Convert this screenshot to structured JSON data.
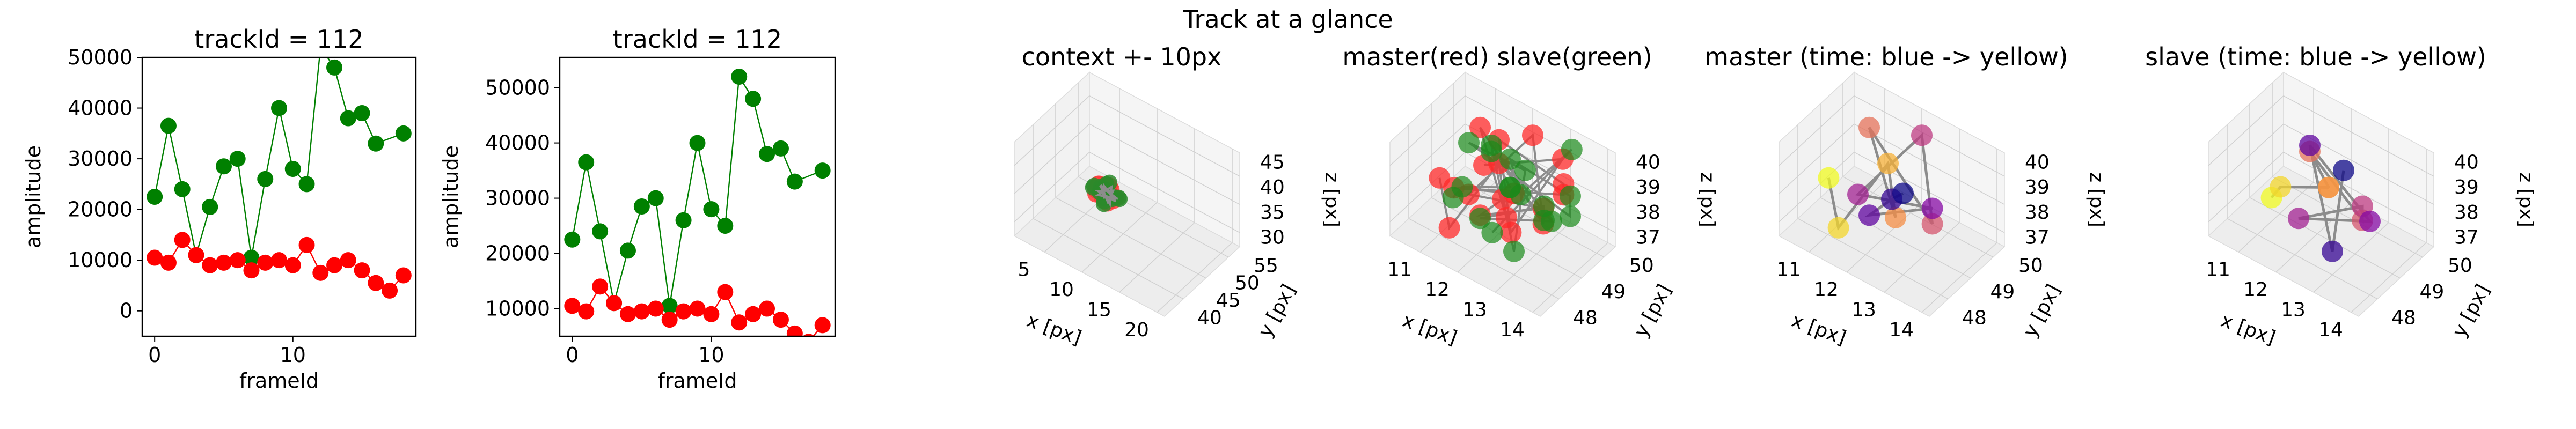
{
  "figure_title": "Track at a glance",
  "chart_data": [
    {
      "type": "scatter",
      "title": "trackId = 112",
      "xlabel": "frameId",
      "ylabel": "amplitude",
      "xlim": [
        -0.9,
        18.9
      ],
      "ylim": [
        -5000,
        50000
      ],
      "xticks": [
        0,
        10
      ],
      "yticks": [
        0,
        10000,
        20000,
        30000,
        40000,
        50000
      ],
      "x": [
        0,
        1,
        2,
        3,
        4,
        5,
        6,
        7,
        8,
        9,
        10,
        11,
        12,
        13,
        14,
        15,
        16,
        17,
        18
      ],
      "series": [
        {
          "color": "#008000",
          "values": [
            22500,
            36500,
            24000,
            11000,
            20500,
            28500,
            30000,
            10500,
            26000,
            40000,
            28000,
            25000,
            52000,
            48000,
            38000,
            39000,
            33000,
            null,
            35000
          ]
        },
        {
          "color": "#ff0000",
          "values": [
            10500,
            9500,
            14000,
            11000,
            9000,
            9500,
            10000,
            8000,
            9500,
            10000,
            9000,
            13000,
            7500,
            9000,
            10000,
            8000,
            5500,
            4000,
            7000
          ]
        }
      ]
    },
    {
      "type": "scatter",
      "title": "trackId = 112",
      "xlabel": "frameId",
      "ylabel": "amplitude",
      "xlim": [
        -0.9,
        18.9
      ],
      "ylim": [
        5000,
        55500
      ],
      "xticks": [
        0,
        10
      ],
      "yticks": [
        10000,
        20000,
        30000,
        40000,
        50000
      ],
      "x": [
        0,
        1,
        2,
        3,
        4,
        5,
        6,
        7,
        8,
        9,
        10,
        11,
        12,
        13,
        14,
        15,
        16,
        17,
        18
      ],
      "series": [
        {
          "color": "#008000",
          "values": [
            22500,
            36500,
            24000,
            11000,
            20500,
            28500,
            30000,
            10500,
            26000,
            40000,
            28000,
            25000,
            52000,
            48000,
            38000,
            39000,
            33000,
            null,
            35000
          ]
        },
        {
          "color": "#ff0000",
          "values": [
            10500,
            9500,
            14000,
            11000,
            9000,
            9500,
            10000,
            8000,
            9500,
            10000,
            9000,
            13000,
            7500,
            9000,
            10000,
            8000,
            5500,
            4000,
            7000
          ]
        }
      ]
    },
    {
      "type": "scatter3d",
      "title": "context +- 10px",
      "xlabel": "x [px]",
      "ylabel": "y [px]",
      "zlabel": "z [px]",
      "xticks": [
        "5",
        "10",
        "15",
        "20"
      ],
      "yticks": [
        "40",
        "45",
        "50",
        "55"
      ],
      "zticks": [
        "30",
        "35",
        "40",
        "45"
      ]
    },
    {
      "type": "scatter3d",
      "title": "master(red) slave(green)",
      "xlabel": "x [px]",
      "ylabel": "y [px]",
      "zlabel": "z [px]",
      "xticks": [
        "11",
        "12",
        "13",
        "14"
      ],
      "yticks": [
        "48",
        "49",
        "50"
      ],
      "zticks": [
        "37",
        "38",
        "39",
        "40"
      ]
    },
    {
      "type": "scatter3d",
      "title": "master (time: blue -> yellow)",
      "xlabel": "x [px]",
      "ylabel": "y [px]",
      "zlabel": "z [px]",
      "xticks": [
        "11",
        "12",
        "13",
        "14"
      ],
      "yticks": [
        "48",
        "49",
        "50"
      ],
      "zticks": [
        "37",
        "38",
        "39",
        "40"
      ]
    },
    {
      "type": "scatter3d",
      "title": "slave (time: blue -> yellow)",
      "xlabel": "x [px]",
      "ylabel": "y [px]",
      "zlabel": "z [px]",
      "xticks": [
        "11",
        "12",
        "13",
        "14"
      ],
      "yticks": [
        "48",
        "49",
        "50"
      ],
      "zticks": [
        "37",
        "38",
        "39",
        "40"
      ]
    }
  ]
}
